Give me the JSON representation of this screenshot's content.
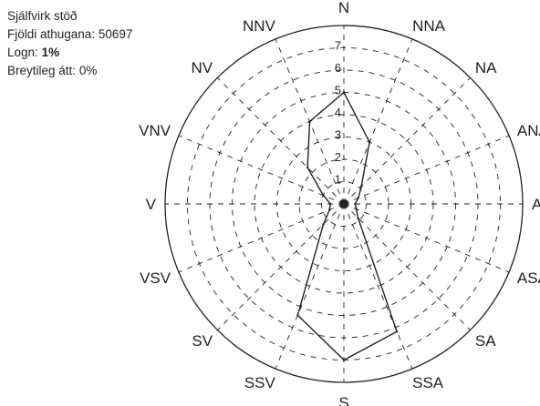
{
  "info": {
    "station": "Sjálfvirk stöð",
    "observations_label": "Fjöldi athugana:",
    "observations_value": "50697",
    "calm_label": "Logn:",
    "calm_value": "1%",
    "variable_label": "Breytileg átt:",
    "variable_value": "0%"
  },
  "colors": {
    "ink": "#222222",
    "background": "#ffffff"
  },
  "chart_data": {
    "type": "radar",
    "title": "",
    "directions": [
      "N",
      "NNA",
      "NA",
      "ANA",
      "A",
      "ASA",
      "SA",
      "SSA",
      "S",
      "SSV",
      "SV",
      "VSV",
      "V",
      "VNV",
      "NV",
      "NNV"
    ],
    "radial_ticks": [
      1,
      2,
      3,
      4,
      5,
      6,
      7
    ],
    "radial_max": 8,
    "grid": true,
    "grid_style": "dashed",
    "series": [
      {
        "values": [
          5.0,
          3.0,
          1.1,
          0.7,
          0.5,
          0.6,
          0.9,
          6.2,
          7.0,
          5.4,
          1.3,
          0.7,
          0.6,
          1.0,
          2.3,
          4.0
        ]
      }
    ]
  }
}
